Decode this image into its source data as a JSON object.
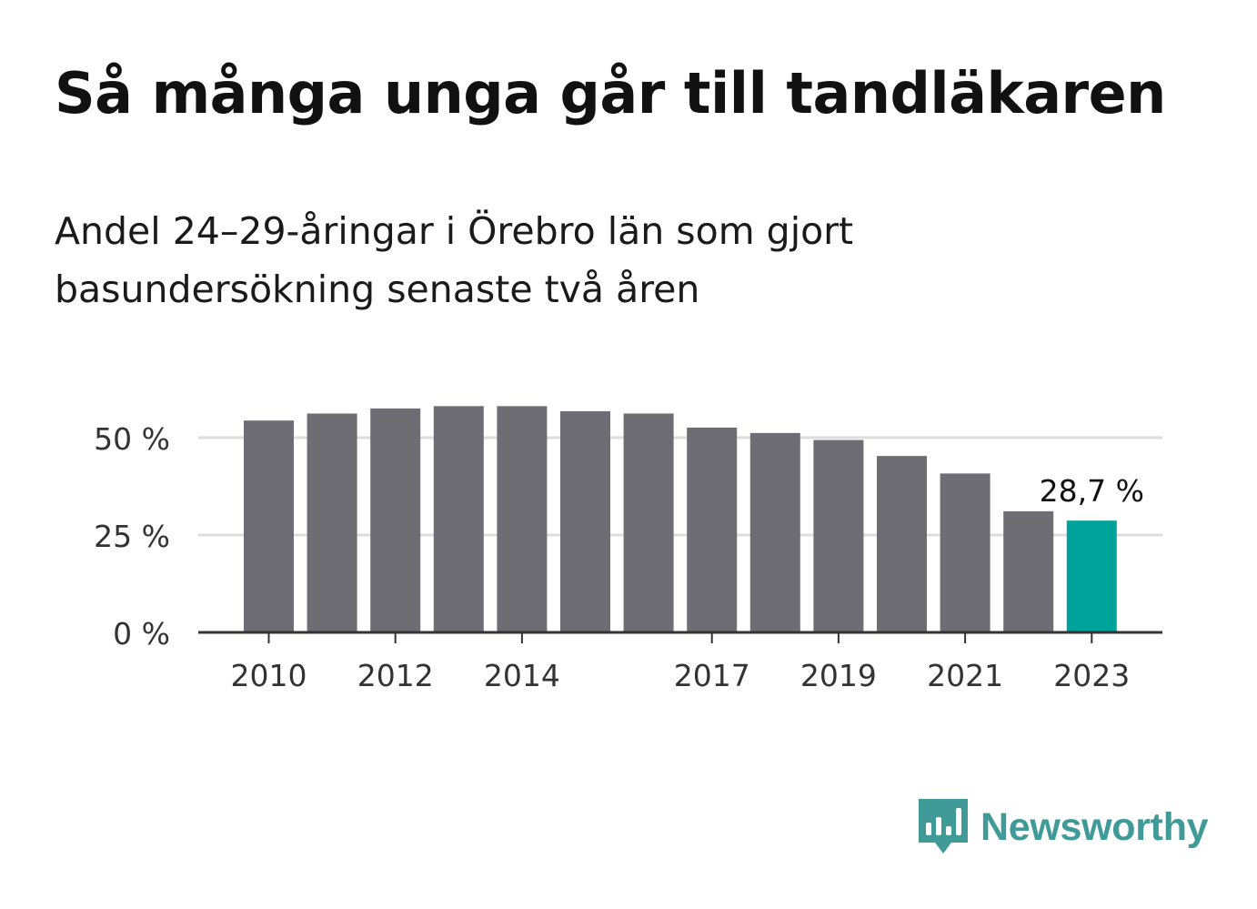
{
  "title": "Så många unga går till tandläkaren",
  "subtitle": [
    "Andel 24–29-åringar i Örebro län som gjort",
    "basundersökning senaste två åren"
  ],
  "brand": {
    "name": "Newsworthy",
    "icon": "newsworthy-logo-icon",
    "color": "#3f9a98"
  },
  "chart_data": {
    "type": "bar",
    "categories": [
      "2010",
      "2011",
      "2012",
      "2013",
      "2014",
      "2015",
      "2016",
      "2017",
      "2018",
      "2019",
      "2020",
      "2021",
      "2022",
      "2023"
    ],
    "values": [
      54.4,
      56.2,
      57.5,
      58.1,
      58.1,
      56.8,
      56.2,
      52.6,
      51.2,
      49.4,
      45.3,
      40.8,
      31.1,
      28.7
    ],
    "x_tick_labels": [
      "2010",
      "2012",
      "2014",
      "2017",
      "2019",
      "2021",
      "2023"
    ],
    "y_ticks": [
      {
        "value": 0,
        "label": "0 %"
      },
      {
        "value": 25,
        "label": "25 %"
      },
      {
        "value": 50,
        "label": "50 %"
      }
    ],
    "ylim": [
      0,
      65
    ],
    "annotation": {
      "category": "2023",
      "label": "28,7 %"
    },
    "colors": {
      "bar": "#6e6d73",
      "highlight": "#00a39a",
      "grid": "#dddddd",
      "axis": "#333333"
    },
    "highlight": "2023",
    "grid": true
  }
}
